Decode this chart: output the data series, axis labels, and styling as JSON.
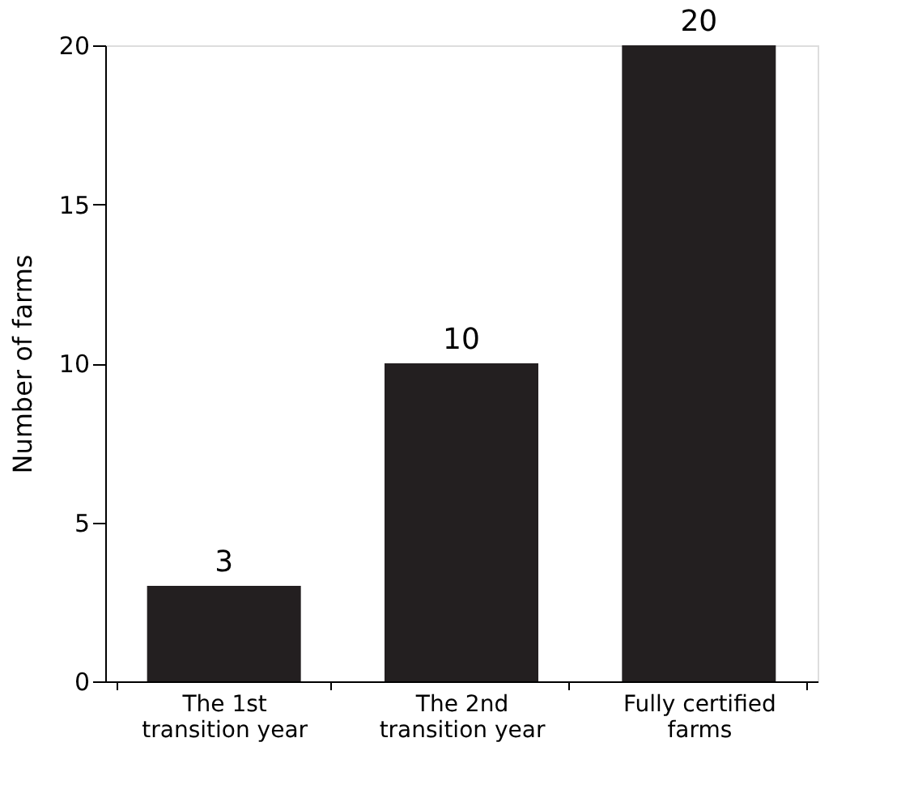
{
  "chart_data": {
    "type": "bar",
    "ylabel": "Number of farms",
    "categories": [
      "The 1st\ntransition year",
      "The 2nd\ntransition year",
      "Fully certified\nfarms"
    ],
    "values": [
      3,
      10,
      20
    ],
    "color": "#231f20",
    "ylim": [
      0,
      20
    ],
    "yticks": [
      0,
      5,
      10,
      15,
      20
    ],
    "grid": false,
    "data_labels": true
  }
}
